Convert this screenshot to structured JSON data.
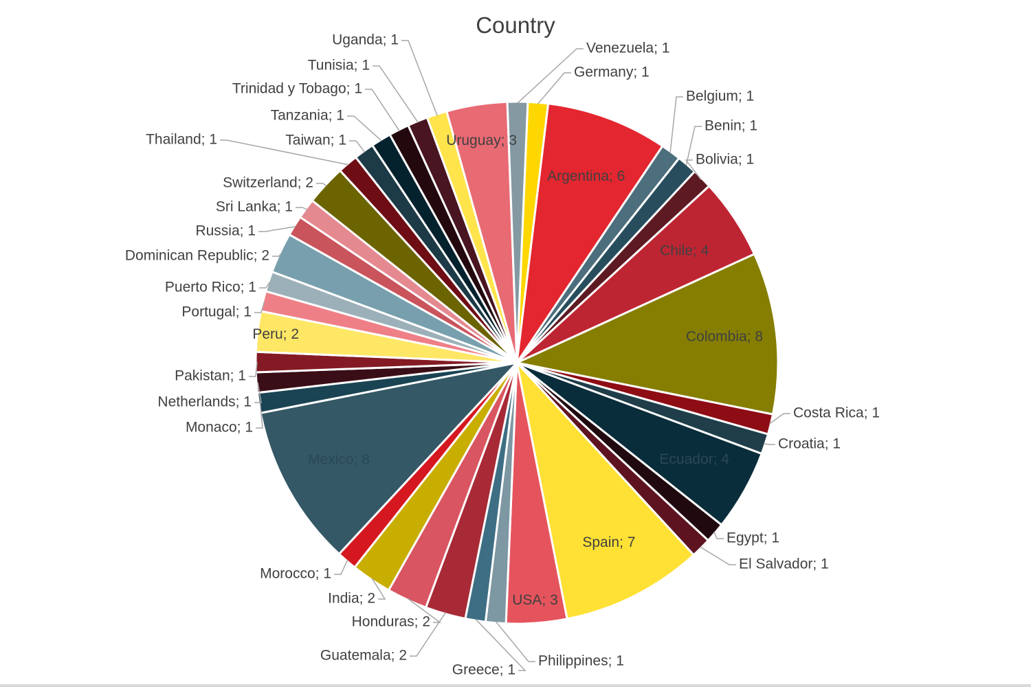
{
  "chart_data": {
    "type": "pie",
    "title": "Country",
    "label_separator": "; ",
    "slices": [
      {
        "label": "Germany",
        "value": 1,
        "color": "#FFD700",
        "text": "Germany; 1"
      },
      {
        "label": "Argentina",
        "value": 6,
        "color": "#E3262F",
        "text": "Argentina; 6"
      },
      {
        "label": "Belgium",
        "value": 1,
        "color": "#4D6E7C",
        "text": "Belgium; 1"
      },
      {
        "label": "Benin",
        "value": 1,
        "color": "#284E5E",
        "text": "Benin; 1"
      },
      {
        "label": "Bolivia",
        "value": 1,
        "color": "#5E1A22",
        "text": "Bolivia; 1"
      },
      {
        "label": "Chile",
        "value": 4,
        "color": "#BE2533",
        "text": "Chile; 4"
      },
      {
        "label": "Colombia",
        "value": 8,
        "color": "#857E00",
        "text": "Colombia; 8"
      },
      {
        "label": "Costa Rica",
        "value": 1,
        "color": "#8E0C14",
        "text": "Costa Rica; 1"
      },
      {
        "label": "Croatia",
        "value": 1,
        "color": "#1F3E4A",
        "text": "Croatia; 1"
      },
      {
        "label": "Ecuador",
        "value": 4,
        "color": "#0A2D3B",
        "text": "Ecuador; 4"
      },
      {
        "label": "Egypt",
        "value": 1,
        "color": "#200A10",
        "text": "Egypt;  1"
      },
      {
        "label": "El Salvador",
        "value": 1,
        "color": "#5E1420",
        "text": "El Salvador; 1"
      },
      {
        "label": "Spain",
        "value": 7,
        "color": "#FFE135",
        "text": "Spain; 7"
      },
      {
        "label": "USA",
        "value": 3,
        "color": "#E5545D",
        "text": "USA; 3"
      },
      {
        "label": "Philippines",
        "value": 1,
        "color": "#7D97A3",
        "text": "Philippines; 1"
      },
      {
        "label": "Greece",
        "value": 1,
        "color": "#3E6E83",
        "text": "Greece; 1"
      },
      {
        "label": "Guatemala",
        "value": 2,
        "color": "#A82A37",
        "text": "Guatemala; 2"
      },
      {
        "label": "Honduras",
        "value": 2,
        "color": "#D95561",
        "text": "Honduras; 2"
      },
      {
        "label": "India",
        "value": 2,
        "color": "#C8AE00",
        "text": "India; 2"
      },
      {
        "label": "Morocco",
        "value": 1,
        "color": "#D51820",
        "text": "Morocco;  1"
      },
      {
        "label": "Mexico",
        "value": 8,
        "color": "#345866",
        "text": "Mexico;  8"
      },
      {
        "label": "Monaco",
        "value": 1,
        "color": "#1A4454",
        "text": "Monaco; 1"
      },
      {
        "label": "Netherlands",
        "value": 1,
        "color": "#3A0E17",
        "text": "Netherlands; 1"
      },
      {
        "label": "Pakistan",
        "value": 1,
        "color": "#841B24",
        "text": "Pakistan; 1"
      },
      {
        "label": "Peru",
        "value": 2,
        "color": "#FFE766",
        "text": "Peru; 2"
      },
      {
        "label": "Portugal",
        "value": 1,
        "color": "#EF7F87",
        "text": "Portugal; 1"
      },
      {
        "label": "Puerto Rico",
        "value": 1,
        "color": "#9CB0B9",
        "text": "Puerto Rico; 1"
      },
      {
        "label": "Dominican Republic",
        "value": 2,
        "color": "#789FAD",
        "text": "Dominican Republic; 2"
      },
      {
        "label": "Russia",
        "value": 1,
        "color": "#C9545C",
        "text": "Russia; 1"
      },
      {
        "label": "Sri Lanka",
        "value": 1,
        "color": "#E58991",
        "text": "Sri Lanka; 1"
      },
      {
        "label": "Switzerland",
        "value": 2,
        "color": "#6B6400",
        "text": "Switzerland; 2"
      },
      {
        "label": "Thailand",
        "value": 1,
        "color": "#6E0D14",
        "text": "Thailand; 1"
      },
      {
        "label": "Taiwan",
        "value": 1,
        "color": "#1D3A47",
        "text": "Taiwan; 1"
      },
      {
        "label": "Tanzania",
        "value": 1,
        "color": "#04222E",
        "text": "Tanzania; 1"
      },
      {
        "label": "Trinidad y Tobago",
        "value": 1,
        "color": "#23080E",
        "text": "Trinidad y Tobago; 1"
      },
      {
        "label": "Tunisia",
        "value": 1,
        "color": "#481521",
        "text": "Tunisia; 1"
      },
      {
        "label": "Uganda",
        "value": 1,
        "color": "#FFE44C",
        "text": "Uganda; 1"
      },
      {
        "label": "Uruguay",
        "value": 3,
        "color": "#E86A73",
        "text": "Uruguay; 3"
      },
      {
        "label": "Venezuela",
        "value": 1,
        "color": "#8499A2",
        "text": "Venezuela; 1"
      }
    ]
  }
}
